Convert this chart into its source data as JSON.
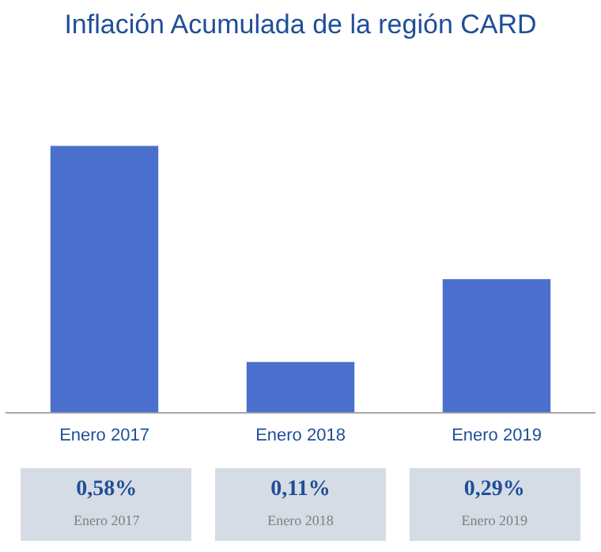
{
  "chart_data": {
    "type": "bar",
    "title": "Inflación Acumulada de la región CARD",
    "categories": [
      "Enero 2017",
      "Enero 2018",
      "Enero 2019"
    ],
    "values": [
      0.58,
      0.11,
      0.29
    ],
    "color": "#4a6fcd",
    "value_labels": [
      "0,58%",
      "0,11%",
      "0,29%"
    ],
    "grid": false,
    "legend": false
  }
}
